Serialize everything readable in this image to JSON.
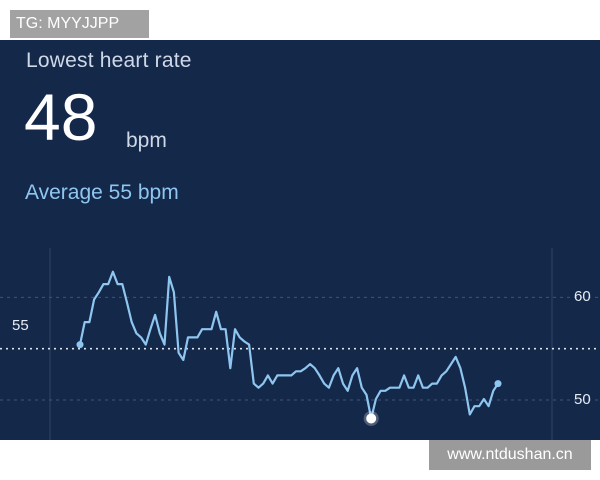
{
  "watermarks": {
    "top_left": "TG: MYYJJPP",
    "bottom_right": "www.ntdushan.cn"
  },
  "header": {
    "title": "Lowest heart rate",
    "value": "48",
    "unit": "bpm",
    "average_text": "Average 55 bpm"
  },
  "colors": {
    "background": "#14284a",
    "line": "#8fc6f0",
    "text": "#ffffff",
    "average_guide": "#ffffff"
  },
  "chart_data": {
    "type": "line",
    "ylim": [
      46.1,
      65.6
    ],
    "y_ticks_right": [
      "60",
      "50"
    ],
    "average_label_left": "55",
    "average_value": 55,
    "series": [
      {
        "values": [
          55.4,
          57.6,
          57.6,
          59.8,
          60.5,
          61.3,
          61.3,
          62.5,
          61.3,
          61.3,
          59.5,
          57.6,
          56.5,
          56.1,
          55.4,
          56.9,
          58.3,
          56.5,
          55.4,
          62.0,
          60.5,
          54.6,
          53.9,
          56.1,
          56.1,
          56.1,
          56.9,
          56.9,
          56.9,
          58.6,
          56.9,
          56.9,
          53.1,
          56.9,
          56.1,
          55.7,
          55.4,
          51.6,
          51.2,
          51.6,
          52.4,
          51.6,
          52.4,
          52.4,
          52.4,
          52.4,
          52.8,
          52.8,
          53.1,
          53.5,
          53.1,
          52.4,
          51.6,
          51.2,
          52.4,
          53.1,
          51.6,
          50.9,
          52.4,
          53.1,
          51.2,
          50.5,
          48.2,
          50.1,
          50.9,
          50.9,
          51.2,
          51.2,
          51.2,
          52.4,
          51.2,
          51.2,
          52.4,
          51.2,
          51.2,
          51.6,
          51.6,
          52.4,
          52.8,
          53.5,
          54.2,
          53.1,
          51.2,
          48.6,
          49.4,
          49.4,
          50.1,
          49.4,
          50.9,
          51.6
        ]
      }
    ],
    "markers": [
      {
        "label": "start-point",
        "index": 0
      },
      {
        "label": "lowest-point",
        "index": 62
      },
      {
        "label": "end-point",
        "index": 89
      }
    ]
  }
}
